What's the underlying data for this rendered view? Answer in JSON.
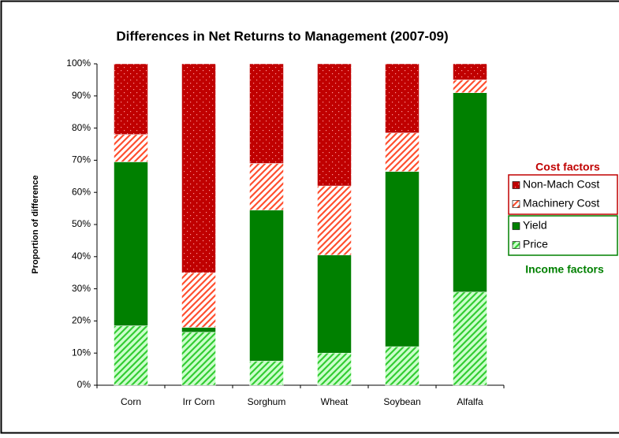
{
  "chart_data": {
    "type": "stacked_bar",
    "title": "Differences in Net Returns to Management (2007-09)",
    "y_label": "Proportion of difference",
    "categories": [
      "Corn",
      "Irr Corn",
      "Sorghum",
      "Wheat",
      "Soybean",
      "Alfalfa"
    ],
    "series": [
      {
        "name": "Price",
        "color": "#33cc33",
        "pattern": "hatch",
        "group": "Income factors",
        "values": [
          18.5,
          16.5,
          7.5,
          10,
          12,
          29
        ]
      },
      {
        "name": "Yield",
        "color": "#008000",
        "pattern": "solid",
        "group": "Income factors",
        "values": [
          51,
          1.5,
          47,
          30.5,
          54.5,
          62
        ]
      },
      {
        "name": "Machinery Cost",
        "color": "#ff4f2f",
        "pattern": "hatch",
        "group": "Cost factors",
        "values": [
          8.5,
          17,
          14.5,
          21.5,
          12,
          4
        ]
      },
      {
        "name": "Non-Mach Cost",
        "color": "#c00000",
        "pattern": "dots",
        "group": "Cost factors",
        "values": [
          22,
          65,
          31,
          38,
          21.5,
          5
        ]
      }
    ],
    "group_colors": {
      "Cost factors": "#c00000",
      "Income factors": "#008000"
    },
    "ylim": [
      0,
      100
    ],
    "yticks": [
      {
        "value": 0,
        "label": "0%"
      },
      {
        "value": 10,
        "label": "10%"
      },
      {
        "value": 20,
        "label": "20%"
      },
      {
        "value": 30,
        "label": "30%"
      },
      {
        "value": 40,
        "label": "40%"
      },
      {
        "value": 50,
        "label": "50%"
      },
      {
        "value": 60,
        "label": "60%"
      },
      {
        "value": 70,
        "label": "70%"
      },
      {
        "value": 80,
        "label": "80%"
      },
      {
        "value": 90,
        "label": "90%"
      },
      {
        "value": 100,
        "label": "100%"
      }
    ],
    "grid": false
  }
}
